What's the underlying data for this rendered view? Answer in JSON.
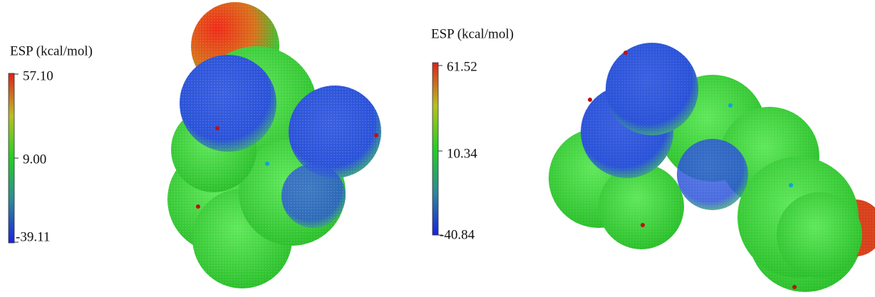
{
  "panels": [
    {
      "title": "ESP (kcal/mol)",
      "max": "57.10",
      "mid": "9.00",
      "min": "-39.11"
    },
    {
      "title": "ESP (kcal/mol)",
      "max": "61.52",
      "mid": "10.34",
      "min": "-40.84"
    }
  ]
}
